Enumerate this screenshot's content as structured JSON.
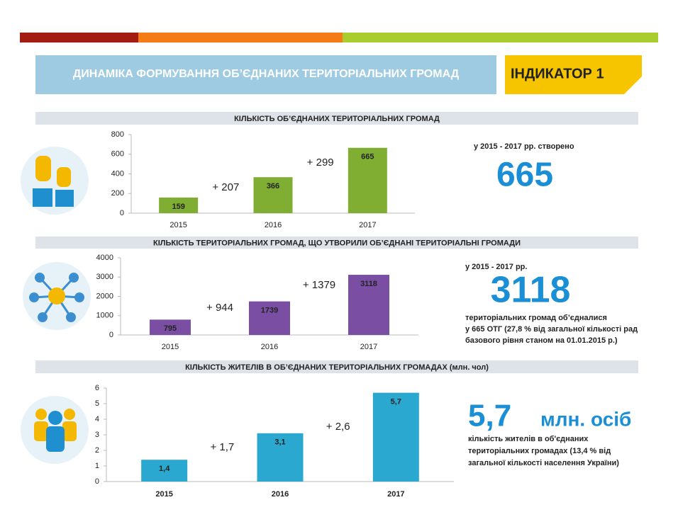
{
  "header": {
    "title": "ДИНАМІКА ФОРМУВАННЯ ОБ’ЄДНАНИХ ТЕРИТОРІАЛЬНИХ ГРОМАД",
    "indicator": "ІНДИКАТОР 1"
  },
  "chart_data": [
    {
      "type": "bar",
      "title": "КІЛЬКІСТЬ ОБ’ЄДНАНИХ ТЕРИТОРІАЛЬНИХ ГРОМАД",
      "categories": [
        "2015",
        "2016",
        "2017"
      ],
      "values": [
        159,
        366,
        665
      ],
      "color": "#7fae32",
      "ylim": [
        0,
        800
      ],
      "yticks": [
        0,
        200,
        400,
        600,
        800
      ],
      "grid": false,
      "annotations": [
        "+ 207",
        "+ 299"
      ]
    },
    {
      "type": "bar",
      "title": "КІЛЬКІСТЬ ТЕРИТОРІАЛЬНИХ ГРОМАД, ЩО УТВОРИЛИ ОБ’ЄДНАНІ ТЕРИТОРІАЛЬНІ ГРОМАДИ",
      "categories": [
        "2015",
        "2016",
        "2017"
      ],
      "values": [
        795,
        1739,
        3118
      ],
      "color": "#7a4fa3",
      "ylim": [
        0,
        4000
      ],
      "yticks": [
        0,
        1000,
        2000,
        3000,
        4000
      ],
      "grid": false,
      "annotations": [
        "+ 944",
        "+ 1379"
      ]
    },
    {
      "type": "bar",
      "title": "КІЛЬКІСТЬ ЖИТЕЛІВ В ОБ’ЄДНАНИХ ТЕРИТОРІАЛЬНИХ ГРОМАДАХ (млн. чол)",
      "categories": [
        "2015",
        "2016",
        "2017"
      ],
      "values": [
        1.4,
        3.1,
        5.7
      ],
      "value_labels": [
        "1,4",
        "3,1",
        "5,7"
      ],
      "color": "#2ba8cf",
      "ylim": [
        0,
        6
      ],
      "yticks": [
        0,
        1,
        2,
        3,
        4,
        5,
        6
      ],
      "grid": false,
      "annotations": [
        "+ 1,7",
        "+ 2,6"
      ]
    }
  ],
  "panels": [
    {
      "lead": "у 2015 - 2017 рр. створено",
      "big": "665"
    },
    {
      "lead": "у 2015 - 2017 рр.",
      "big": "3118",
      "lines": [
        "територіальних громад об’єдналися",
        "у 665 ОТГ (27,8 % від загальної кількості рад",
        "базового рівня станом на 01.01.2015 р.)"
      ]
    },
    {
      "big": "5,7",
      "unit": "млн. осіб",
      "lines": [
        "кількість жителів в об'єднаних",
        "територіальних громадах (13,4 % від",
        "загальної кількості населення України)"
      ]
    }
  ]
}
